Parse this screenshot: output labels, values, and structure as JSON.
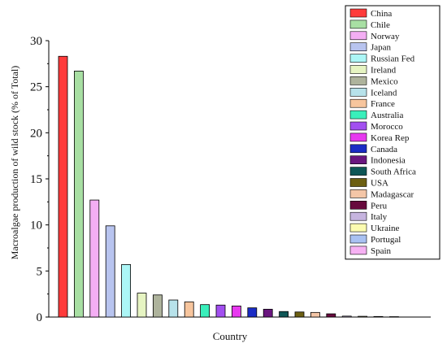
{
  "chart_data": {
    "type": "bar",
    "xlabel": "Country",
    "ylabel": "Macroalgae production of wild stock (% of Total)",
    "ylim": [
      0,
      30
    ],
    "yticks": [
      0,
      5,
      10,
      15,
      20,
      25,
      30
    ],
    "legend_position": "top-right",
    "grid": false,
    "categories": [
      "China",
      "Chile",
      "Norway",
      "Japan",
      "Russian Fed",
      "Ireland",
      "Mexico",
      "Iceland",
      "France",
      "Australia",
      "Morocco",
      "Korea Rep",
      "Canada",
      "Indonesia",
      "South Africa",
      "USA",
      "Madagascar",
      "Peru",
      "Italy",
      "Ukraine",
      "Portugal",
      "Spain"
    ],
    "values": [
      28.3,
      26.7,
      12.7,
      9.9,
      5.7,
      2.6,
      2.4,
      1.85,
      1.65,
      1.35,
      1.3,
      1.2,
      1.0,
      0.85,
      0.6,
      0.55,
      0.5,
      0.35,
      0.1,
      0.08,
      0.06,
      0.04
    ],
    "colors": [
      "#ff3b3b",
      "#a8dfa3",
      "#f4aef4",
      "#b8c4ef",
      "#acf6f6",
      "#e6f4c2",
      "#aeb39c",
      "#b7e2ea",
      "#f7c59d",
      "#39efbb",
      "#a24ff0",
      "#e739ef",
      "#1a2cc5",
      "#6a167f",
      "#0e5656",
      "#6c5f12",
      "#f4c6a7",
      "#670a3d",
      "#c6b4df",
      "#fbfbb0",
      "#a9c1f2",
      "#f6b1f3"
    ]
  }
}
